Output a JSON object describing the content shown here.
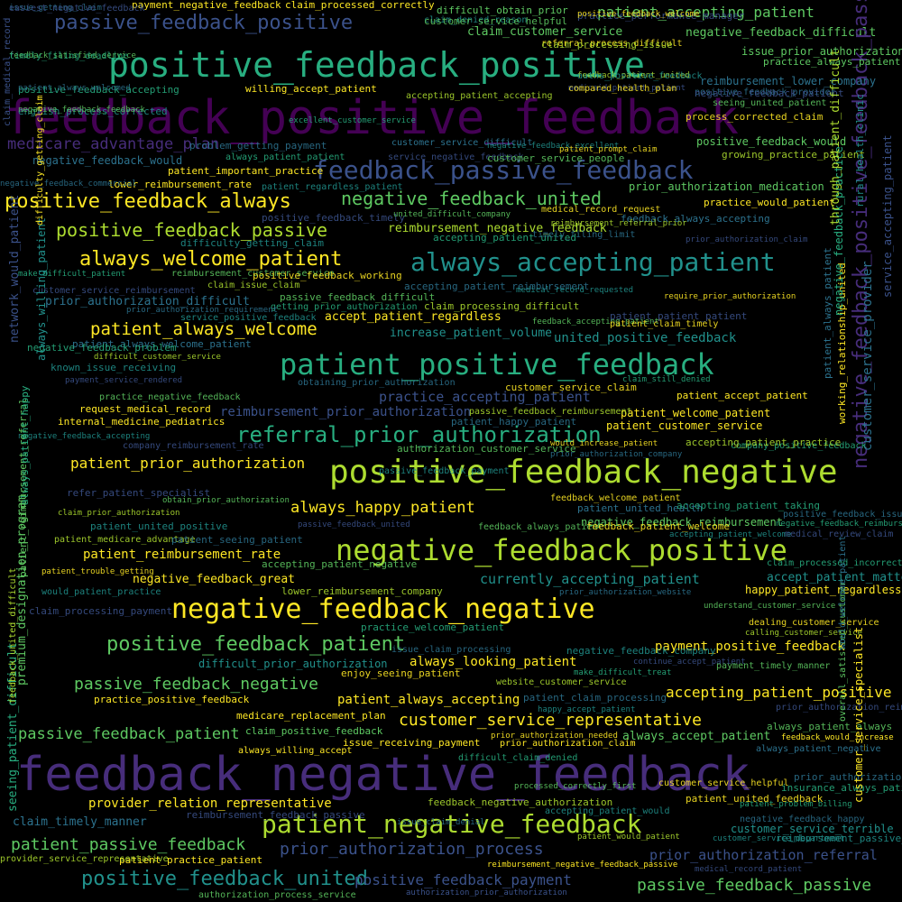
{
  "palette": {
    "purple": "#440154",
    "indigo": "#472d7b",
    "blue": "#3b528b",
    "teal": "#2c728e",
    "cyan": "#21918c",
    "green": "#28ae80",
    "lime": "#5ec962",
    "yellow_green": "#addc30",
    "yellow": "#fde725"
  },
  "words": [
    "feedback_positive_feedback",
    "feedback_negative_feedback",
    "positive_feedback_positive",
    "positive_feedback_negative",
    "negative_feedback_positive",
    "patient_positive_feedback",
    "negative_feedback_negative",
    "always_accepting_patient",
    "feedback_passive_feedback",
    "patient_negative_feedback",
    "customer_service_representative",
    "referral_prior_authorization",
    "always_welcome_patient",
    "positive_feedback_always",
    "negative_feedback_united",
    "positive_feedback_patient",
    "positive_feedback_united",
    "patient_always_welcome",
    "positive_feedback_passive",
    "passive_feedback_positive",
    "patient_accepting_patient",
    "passive_feedback_negative",
    "passive_feedback_patient",
    "patient_passive_feedback",
    "patient_prior_authorization",
    "prior_authorization_process",
    "passive_feedback_passive",
    "medicare_advantage_plan",
    "always_happy_patient",
    "accepting_patient_positive",
    "prior_authorization_medication",
    "reimbursement_negative_feedback",
    "accept_patient_regardless",
    "patient_always_accepting",
    "always_looking_patient",
    "currently_accepting_patient",
    "practice_accepting_patient",
    "payment_positive_feedback",
    "reimbursement_prior_authorization",
    "prior_authorization_referral",
    "negative_feedback_difficult",
    "positive_feedback_payment",
    "provider_relation_representative",
    "patient_reimbursement_rate",
    "claim_customer_service",
    "united_positive_feedback",
    "increase_patient_volume",
    "difficult_prior_authorization",
    "negative_feedback_positive_feedback_passive",
    "patient_always_welcome_patient",
    "customer_service_provider",
    "claim_timely_manner",
    "feedback_always_accepting",
    "claim_processed_correctly",
    "patient_important_practice",
    "lower_reimbursement_rate",
    "request_medical_record",
    "internal_medicine_pediatrics",
    "prior_authorization_difficult",
    "negative_feedback_great",
    "accept_patient_matter",
    "happy_patient_regardless",
    "negative_feedback_reimbursement",
    "payment_negative_feedback",
    "difficult_obtain_prior",
    "issue_prior_authorization",
    "practice_would_patient",
    "reimbursement_lower_company",
    "willing_accept_patient",
    "practice_always_patient",
    "always_accept_patient",
    "customer_service_difficult",
    "patient_welcome_patient",
    "patient_customer_service",
    "patient_accept_patient",
    "practice_positive_feedback",
    "medicare_replacement_plan",
    "claim_positive_feedback",
    "always_willing_accept",
    "issue_receiving_payment",
    "prior_authorization_claim",
    "positive_feedback_would",
    "negative_feedback_would",
    "customer_service_terrible",
    "feedback_would_increase",
    "always_patient_negative",
    "authorization_prior_authorization",
    "reimbursement_negative_feedback_passive",
    "patient_practice_patient",
    "patient_united_health",
    "negative_feedback_provider_patient"
  ],
  "small_words": [
    "issue_getting_claim",
    "claim_denied_reason",
    "practice_performance_manager",
    "feedback_satisfied_service",
    "referral_process_difficult",
    "positive_feedback_accepting",
    "feedback_patient_united",
    "positive_feedback_provider",
    "english_process_corrected",
    "medicaid_patient_patient",
    "seeing_united_patient",
    "process_corrected_claim",
    "excellent_customer_service",
    "accepting_patient_accepting",
    "problem_getting_payment",
    "negative_feedback_excellent",
    "service_negative_feedback",
    "customer_service_people",
    "patient_prompt_claim",
    "always_patient_patient",
    "growing_practice_patient",
    "negative_feedback_commercial",
    "patient_regardless_patient",
    "positive_feedback_timely",
    "united_difficult_company",
    "medical_record_request",
    "accepting_patient_united",
    "reimbursement_referral_prior",
    "timely_filing_limit",
    "difficulty_getting_claim",
    "prior_authorization_claim",
    "reimbursement_customer_service",
    "positive_feedback_working",
    "make_difficult_patient",
    "claim_issue_claim",
    "accepting_patient_reimbursement",
    "medical_record_requested",
    "customer_service_reimbursement",
    "passive_feedback_difficult",
    "require_prior_authorization",
    "getting_prior_authorization",
    "claim_processing_difficult",
    "prior_authorization_requirement",
    "service_positive_feedback",
    "patient_patient_patient",
    "feedback_accepting_patient",
    "patient_claim_timely",
    "negative_feedback_problem",
    "difficult_customer_service",
    "obtaining_prior_authorization",
    "known_issue_receiving",
    "payment_service_rendered",
    "practice_negative_feedback",
    "customer_service_claim",
    "claim_still_denied",
    "passive_feedback_reimbursement",
    "patient_happy_patient",
    "negative_feedback_accepting",
    "company_reimbursement_rate",
    "authorization_customer_service",
    "would_increase_patient",
    "company_positive_feedback",
    "accepting_patient_practice",
    "prior_authorization_company",
    "passive_feedback_payment",
    "refer_patient_specialist",
    "obtain_prior_authorization",
    "feedback_welcome_patient",
    "accepting_patient_taking",
    "claim_prior_authorization",
    "positive_feedback_issue",
    "patient_united_positive",
    "passive_feedback_united",
    "feedback_always_patient",
    "feedback_patient_welcome",
    "negative_feedback_reimbursement",
    "patient_medicare_advantage",
    "patient_seeing_patient",
    "accepting_patient_welcome",
    "medical_review_claim",
    "accepting_patient_negative",
    "patient_trouble_getting",
    "claim_processed_incorrectly",
    "lower_reimbursement_company",
    "prior_authorization_website",
    "would_patient_practice",
    "claim_processing_payment",
    "understand_customer_service",
    "dealing_customer_service",
    "practice_welcome_patient",
    "calling_customer_service",
    "issue_claim_processing",
    "negative_feedback_company",
    "continue_accept_patient",
    "payment_timely_manner",
    "enjoy_seeing_patient",
    "make_difficult_treat",
    "website_customer_service",
    "patient_claim_processing",
    "happy_accept_patient",
    "prior_authorization_reimbursement",
    "always_patient_always",
    "prior_authorization_needed",
    "difficult_claim_denied",
    "feedback_negative_authorization",
    "issue_claim_denial",
    "accepting_patient_would",
    "reimbursement_feedback_passive",
    "processed_correctly_first",
    "customer_service_helpful",
    "insurance_always_patient",
    "patient_would_patient",
    "negative_feedback_happy",
    "reimbursement_passive_feedback",
    "medical_record_patient",
    "authorization_process_service",
    "patient_united_feedback",
    "patient_problem_billing",
    "provider_service_representative",
    "prior_authorization_procedure",
    "customer_service_department",
    "easiest_negative_feedback",
    "customer_service_helpful",
    "positive_feedback_welcome",
    "timely_filing_deadline",
    "claim_processing_issue",
    "patient_always_welcomed",
    "auths_positive_feedback",
    "negative_feedback_patient",
    "negative_feedback_feedback",
    "compared_health_plan"
  ],
  "vertical_words": [
    "claim_medical_record",
    "patient_reimbursement_referral",
    "customer_service_specialist",
    "seeing_patient_difficult",
    "feedback_united_difficult",
    "patient_always_patient",
    "always_willing_patient",
    "network_would_patient",
    "overall_satisfied_customer",
    "working_relationship_united",
    "negative_feedback_practice",
    "through_patient_difficult",
    "would_welcome_patient",
    "rural_health_clinic",
    "service_accepting_patient",
    "premium_designation_program",
    "difficulty_getting_claim",
    "always_patient_happy"
  ]
}
